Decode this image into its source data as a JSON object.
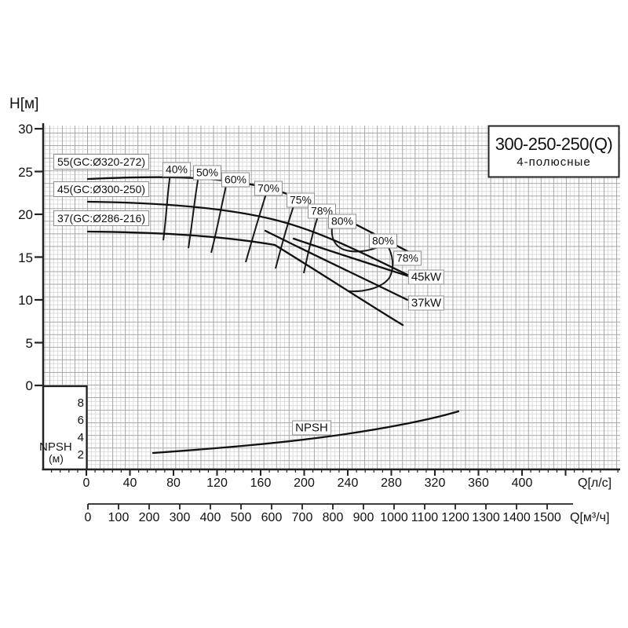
{
  "title": {
    "model": "300-250-250(Q)",
    "poles": "4-полюсные"
  },
  "axes": {
    "y_title": "H[м]",
    "y_ticks": [
      "30",
      "25",
      "20",
      "15",
      "10",
      "5",
      "0"
    ],
    "x1_title": "Q[л/с]",
    "x1_ticks": [
      "0",
      "40",
      "80",
      "120",
      "160",
      "200",
      "240",
      "280",
      "320",
      "360",
      "400"
    ],
    "x2_title": "Q[м³/ч]",
    "x2_ticks": [
      "0",
      "100",
      "200",
      "300",
      "400",
      "500",
      "600",
      "700",
      "800",
      "900",
      "1000",
      "1100",
      "1200",
      "1300",
      "1400",
      "1500"
    ],
    "npsh_title_line1": "NPSH",
    "npsh_title_line2": "(м)",
    "npsh_ticks": [
      "8",
      "6",
      "4",
      "2"
    ]
  },
  "curve_labels": [
    "55(GC:Ø320-272)",
    "45(GC:Ø300-250)",
    "37(GC:Ø286-216)"
  ],
  "efficiency_labels": [
    "40%",
    "50%",
    "60%",
    "70%",
    "75%",
    "78%",
    "80%",
    "80%",
    "78%"
  ],
  "power_labels": [
    "45kW",
    "37kW"
  ],
  "npsh_curve_label": "NPSH",
  "chart_data": {
    "type": "line",
    "title": "300-250-250(Q) 4-полюсные",
    "x_axis": {
      "label": "Q[л/с]",
      "range": [
        0,
        440
      ],
      "ticks": [
        0,
        40,
        80,
        120,
        160,
        200,
        240,
        280,
        320,
        360,
        400
      ]
    },
    "x_axis_secondary": {
      "label": "Q[м³/ч]",
      "range": [
        0,
        1500
      ],
      "ticks": [
        0,
        100,
        200,
        300,
        400,
        500,
        600,
        700,
        800,
        900,
        1000,
        1100,
        1200,
        1300,
        1400,
        1500
      ]
    },
    "y_axis": {
      "label": "H[м]",
      "range": [
        0,
        30
      ],
      "ticks": [
        0,
        5,
        10,
        15,
        20,
        25,
        30
      ]
    },
    "npsh_axis": {
      "label": "NPSH (м)",
      "ticks": [
        2,
        4,
        6,
        8
      ]
    },
    "grid": "fine millimeter grid",
    "series": [
      {
        "name": "55(GC:Ø320-272)",
        "unit_Q": "л/с",
        "unit_H": "м",
        "points": [
          [
            0,
            24.1
          ],
          [
            40,
            24.3
          ],
          [
            80,
            24.3
          ],
          [
            120,
            23.9
          ],
          [
            160,
            23.0
          ],
          [
            200,
            21.6
          ],
          [
            240,
            19.4
          ],
          [
            280,
            16.7
          ],
          [
            297,
            15.5
          ]
        ]
      },
      {
        "name": "45(GC:Ø300-250)",
        "unit_Q": "л/с",
        "unit_H": "м",
        "points": [
          [
            0,
            21.5
          ],
          [
            80,
            21.2
          ],
          [
            160,
            20.0
          ],
          [
            200,
            18.8
          ],
          [
            240,
            17.0
          ],
          [
            280,
            14.1
          ],
          [
            294,
            12.8
          ]
        ]
      },
      {
        "name": "37(GC:Ø286-216)",
        "unit_Q": "л/с",
        "unit_H": "м",
        "points": [
          [
            0,
            18.0
          ],
          [
            80,
            17.7
          ],
          [
            160,
            16.4
          ],
          [
            200,
            14.8
          ],
          [
            240,
            12.4
          ],
          [
            280,
            8.9
          ],
          [
            289,
            7.1
          ]
        ]
      },
      {
        "name": "NPSH",
        "unit_Q": "л/с",
        "unit_H": "м",
        "points": [
          [
            61,
            2.2
          ],
          [
            120,
            2.6
          ],
          [
            160,
            3.0
          ],
          [
            230,
            4.1
          ],
          [
            300,
            5.7
          ],
          [
            340,
            6.9
          ]
        ]
      }
    ],
    "efficiency_contours_percent": [
      40,
      50,
      60,
      70,
      75,
      78,
      80,
      80,
      78
    ],
    "power_limit_lines": [
      "45kW",
      "37kW"
    ],
    "legend_position": "labels-on-chart"
  }
}
